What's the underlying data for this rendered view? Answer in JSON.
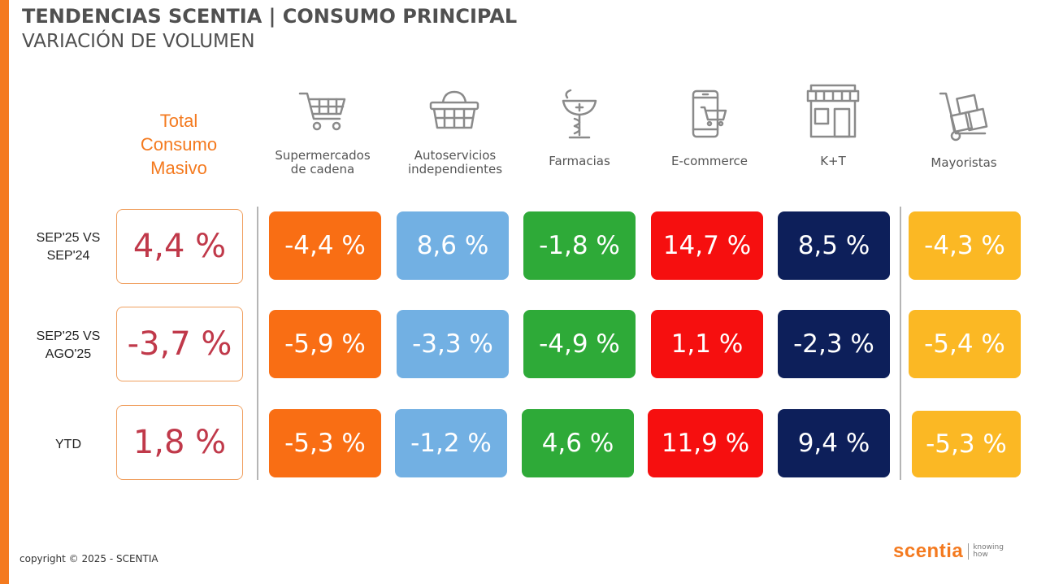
{
  "header": {
    "title": "TENDENCIAS SCENTIA   | CONSUMO PRINCIPAL",
    "subtitle": "VARIACIÓN DE VOLUMEN"
  },
  "total_header": [
    "Total",
    "Consumo",
    "Masivo"
  ],
  "channels": [
    {
      "label_lines": [
        "Supermercados",
        "de cadena"
      ],
      "icon": "shopping-cart-icon",
      "color": "#f96e14"
    },
    {
      "label_lines": [
        "Autoservicios",
        "independientes"
      ],
      "icon": "shopping-basket-icon",
      "color": "#72b0e3"
    },
    {
      "label_lines": [
        "Farmacias"
      ],
      "icon": "pharmacy-icon",
      "color": "#2eaa38"
    },
    {
      "label_lines": [
        "E-commerce"
      ],
      "icon": "mobile-cart-icon",
      "color": "#f60f0f"
    },
    {
      "label_lines": [
        "K+T"
      ],
      "icon": "store-icon",
      "color": "#0d1f5a"
    },
    {
      "label_lines": [
        "Mayoristas"
      ],
      "icon": "hand-truck-icon",
      "color": "#fbb824"
    }
  ],
  "chart_data": {
    "type": "table",
    "title": "VARIACIÓN DE VOLUMEN",
    "unit": "%",
    "columns": [
      "Total Consumo Masivo",
      "Supermercados de cadena",
      "Autoservicios independientes",
      "Farmacias",
      "E-commerce",
      "K+T",
      "Mayoristas"
    ],
    "rows": [
      {
        "label_lines": [
          "SEP'25 VS",
          "SEP'24"
        ],
        "total": "4,4 %",
        "values": [
          "-4,4 %",
          "8,6 %",
          "-1,8 %",
          "14,7 %",
          "8,5 %",
          "-4,3 %"
        ]
      },
      {
        "label_lines": [
          "SEP'25 VS",
          "AGO'25"
        ],
        "total": "-3,7 %",
        "values": [
          "-5,9 %",
          "-3,3 %",
          "-4,9 %",
          "1,1 %",
          "-2,3 %",
          "-5,4 %"
        ]
      },
      {
        "label_lines": [
          "YTD"
        ],
        "total": "1,8 %",
        "values": [
          "-5,3 %",
          "-1,2 %",
          "4,6 %",
          "11,9 %",
          "9,4 %",
          "-5,3 %"
        ]
      }
    ],
    "total_color": "#c0394a"
  },
  "footer": {
    "copyright": "copyright © 2025 - SCENTIA",
    "logo_word": "scentia",
    "logo_tag": [
      "knowing",
      "how"
    ]
  }
}
